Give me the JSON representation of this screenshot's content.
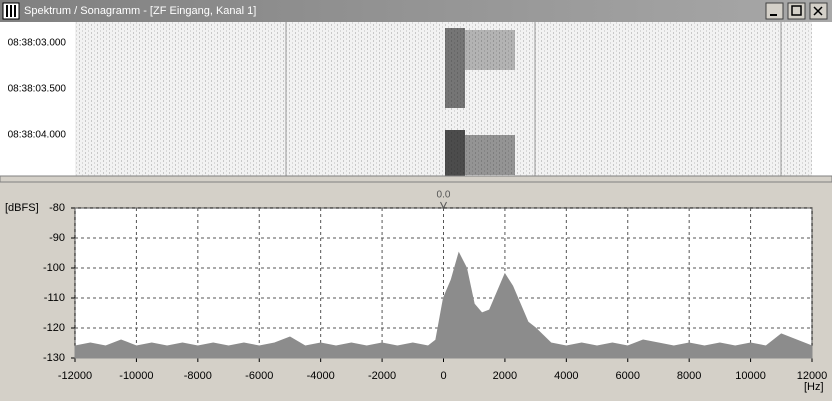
{
  "window": {
    "title": "Spektrum / Sonagramm - [ZF Eingang, Kanal 1]"
  },
  "sonagram": {
    "time_labels": [
      "08:38:03.000",
      "08:38:03.500",
      "08:38:04.000"
    ]
  },
  "chart_data": {
    "type": "area",
    "y_label": "[dBFS]",
    "x_label": "[Hz]",
    "marker_label": "0.0",
    "x": [
      -12000,
      -11500,
      -11000,
      -10500,
      -10000,
      -9500,
      -9000,
      -8500,
      -8000,
      -7500,
      -7000,
      -6500,
      -6000,
      -5500,
      -5000,
      -4500,
      -4000,
      -3500,
      -3000,
      -2500,
      -2000,
      -1500,
      -1000,
      -500,
      -250,
      0,
      250,
      500,
      750,
      1000,
      1250,
      1500,
      1750,
      2000,
      2250,
      2500,
      2750,
      3000,
      3500,
      4000,
      4500,
      5000,
      5500,
      6000,
      6500,
      7000,
      7500,
      8000,
      8500,
      9000,
      9500,
      10000,
      10500,
      11000,
      11500,
      12000
    ],
    "values": [
      -126,
      -125,
      -126,
      -124,
      -126,
      -125,
      -126,
      -125,
      -126,
      -125,
      -126,
      -125,
      -126,
      -125,
      -123,
      -126,
      -125,
      -126,
      -125,
      -126,
      -125,
      -126,
      -125,
      -126,
      -124,
      -110,
      -104,
      -95,
      -100,
      -112,
      -115,
      -114,
      -108,
      -102,
      -106,
      -112,
      -118,
      -120,
      -125,
      -126,
      -125,
      -126,
      -125,
      -126,
      -124,
      -125,
      -126,
      -125,
      -126,
      -125,
      -126,
      -125,
      -126,
      -122,
      -124,
      -126
    ],
    "color": "#8c8c8c",
    "xlim": [
      -12000,
      12000
    ],
    "ylim": [
      -130,
      -80
    ],
    "xticks": [
      -12000,
      -10000,
      -8000,
      -6000,
      -4000,
      -2000,
      0,
      2000,
      4000,
      6000,
      8000,
      10000,
      12000
    ],
    "yticks": [
      -80,
      -90,
      -100,
      -110,
      -120,
      -130
    ],
    "grid": true
  }
}
